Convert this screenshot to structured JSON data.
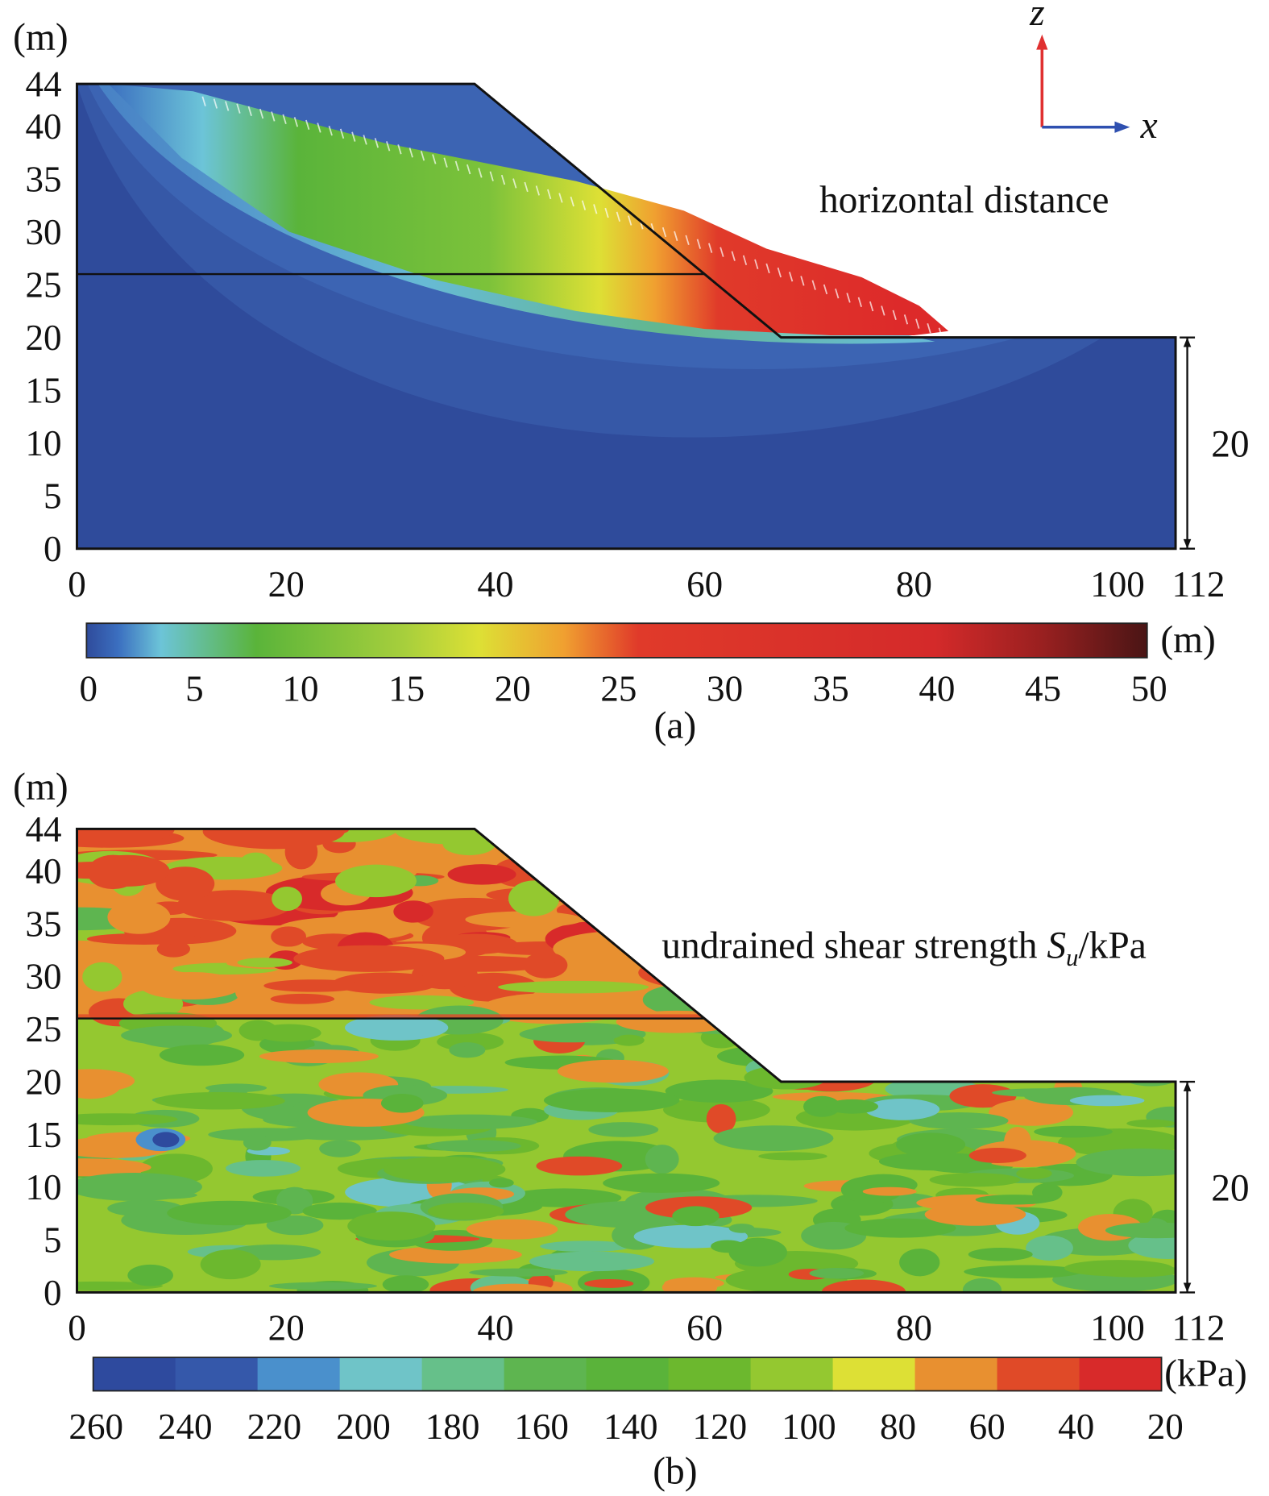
{
  "chart_data": [
    {
      "type": "heatmap",
      "panel_label": "(a)",
      "annotation": "horizontal distance",
      "y_unit_label": "(m)",
      "y_ticks": [
        "44",
        "40",
        "35",
        "30",
        "25",
        "20",
        "15",
        "10",
        "5",
        "0"
      ],
      "x_ticks": [
        "0",
        "20",
        "40",
        "60",
        "80",
        "100",
        "112"
      ],
      "height_annotation": "20",
      "axes_indicator": {
        "z_label": "z",
        "x_label": "x"
      },
      "profile": {
        "crest_height": 44,
        "crest_x": 38,
        "toe_x": 67.3,
        "toe_height": 20,
        "layer_boundary_height": 26
      },
      "colorbar": {
        "unit": "(m)",
        "range": [
          0,
          50
        ],
        "tick_labels": [
          "0",
          "5",
          "10",
          "15",
          "20",
          "25",
          "30",
          "35",
          "40",
          "45",
          "50"
        ],
        "colors": [
          "#2f4b9b",
          "#3b6fc0",
          "#6cc4d8",
          "#5ab43a",
          "#a7cf3c",
          "#dde035",
          "#f0a030",
          "#e03a2a",
          "#d42a2a",
          "#9a2020",
          "#4a1515"
        ]
      }
    },
    {
      "type": "heatmap",
      "panel_label": "(b)",
      "annotation": "undrained shear strength ",
      "annotation_symbol": "S",
      "annotation_subscript": "u",
      "annotation_unit": "/kPa",
      "y_unit_label": "(m)",
      "y_ticks": [
        "44",
        "40",
        "35",
        "30",
        "25",
        "20",
        "15",
        "10",
        "5",
        "0"
      ],
      "x_ticks": [
        "0",
        "20",
        "40",
        "60",
        "80",
        "100",
        "112"
      ],
      "height_annotation": "20",
      "colorbar": {
        "unit": "(kPa)",
        "tick_labels": [
          "260",
          "240",
          "220",
          "200",
          "180",
          "160",
          "140",
          "120",
          "100",
          "80",
          "60",
          "40",
          "20"
        ],
        "colors": [
          "#2e4a9e",
          "#3558aa",
          "#4a90cc",
          "#6fc4c8",
          "#66c08a",
          "#5eb550",
          "#5ab33a",
          "#6cb82e",
          "#94c830",
          "#dde035",
          "#e89030",
          "#e04a28",
          "#d82a2a"
        ]
      }
    }
  ]
}
